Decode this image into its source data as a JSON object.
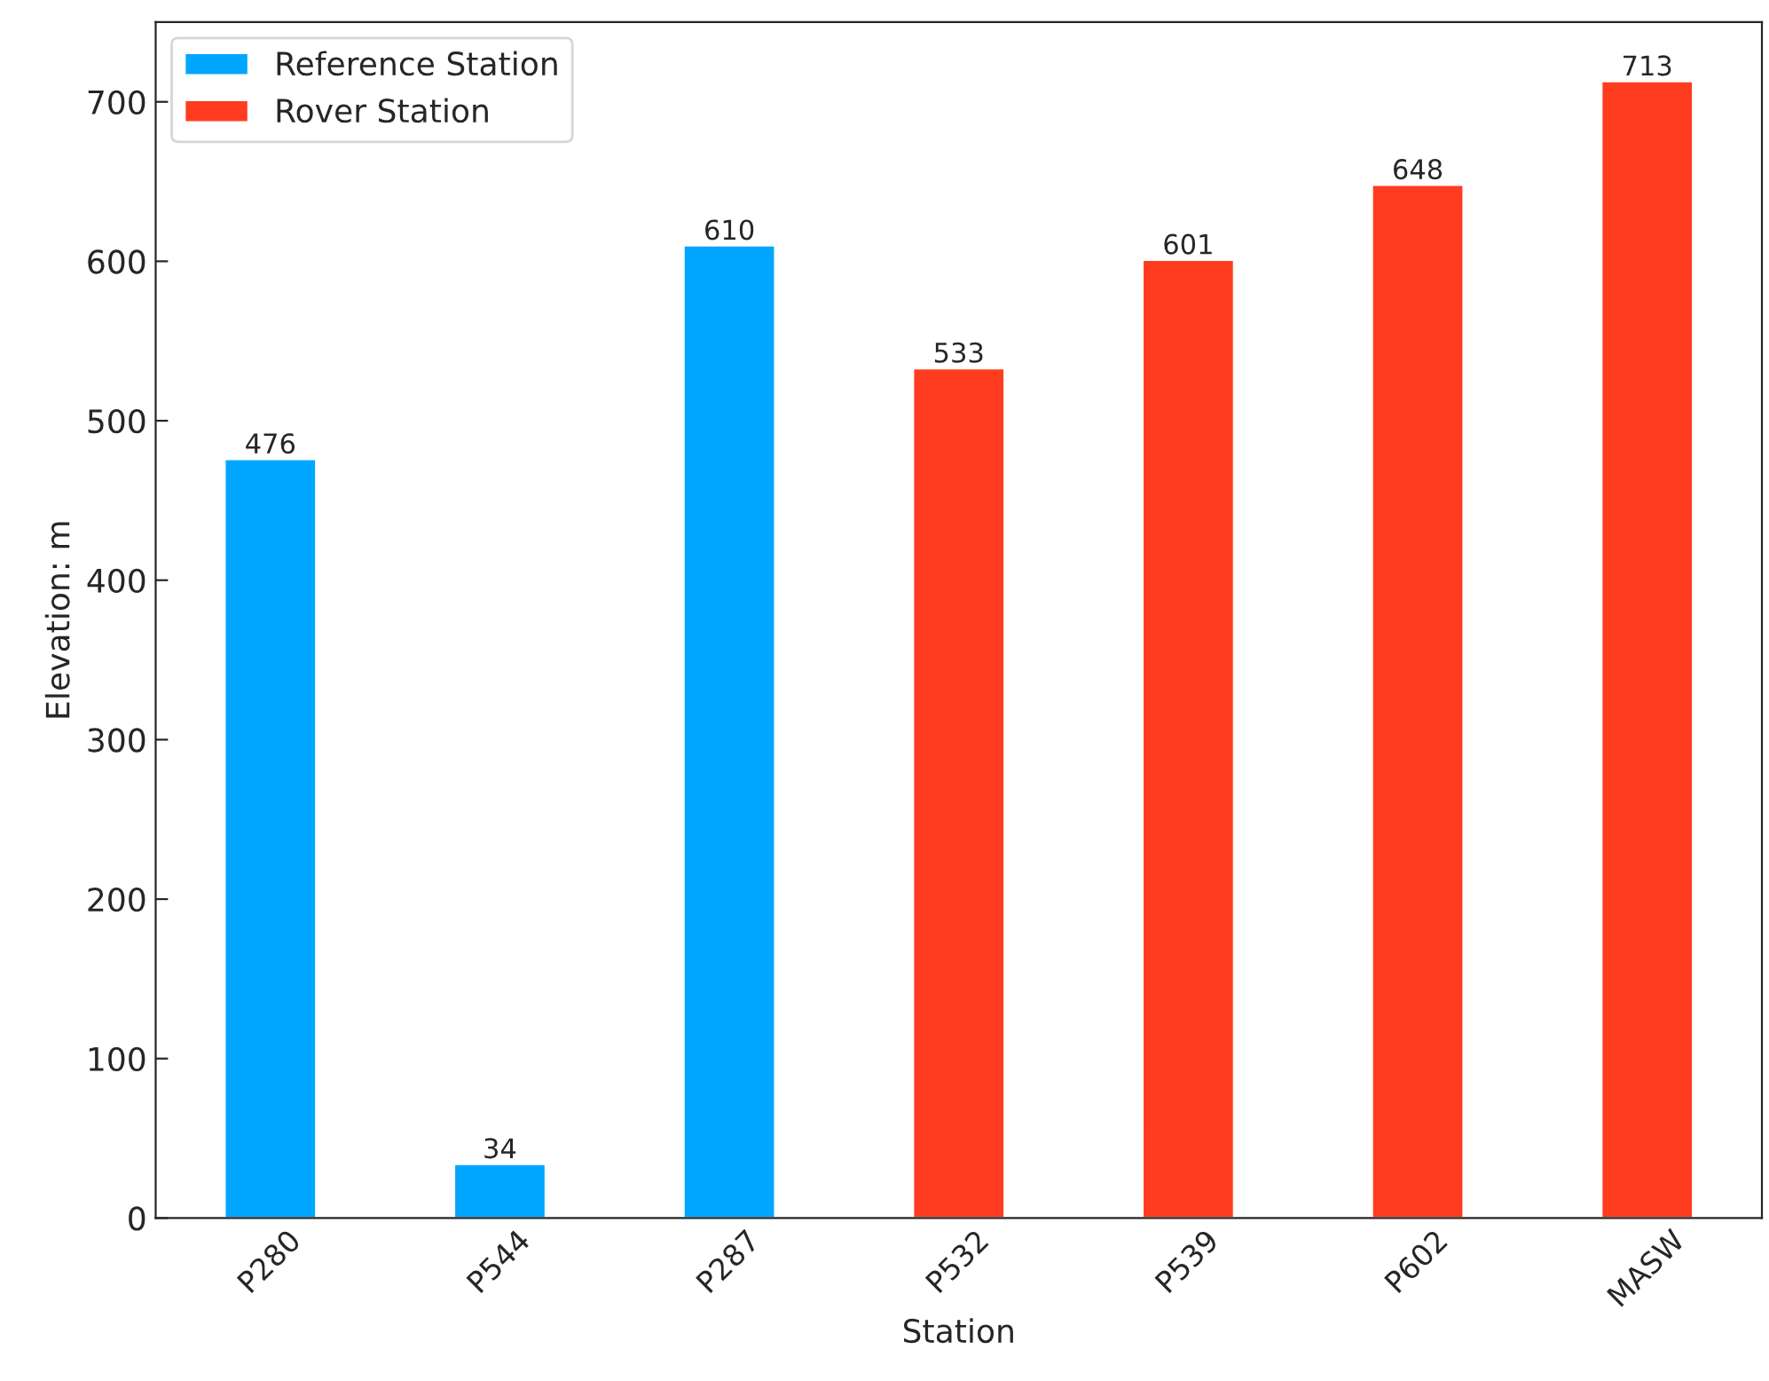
{
  "chart_data": {
    "type": "bar",
    "xlabel": "Station",
    "ylabel": "Elevation: m",
    "categories": [
      "P280",
      "P544",
      "P287",
      "P532",
      "P539",
      "P602",
      "MASW"
    ],
    "series": [
      {
        "name": "Reference Station",
        "color": "#00a6ff",
        "values": [
          476,
          34,
          610,
          null,
          null,
          null,
          null
        ]
      },
      {
        "name": "Rover Station",
        "color": "#ff3c1f",
        "values": [
          null,
          null,
          null,
          533,
          601,
          648,
          713
        ]
      }
    ],
    "ylim": [
      0,
      750
    ],
    "yticks": [
      0,
      100,
      200,
      300,
      400,
      500,
      600,
      700
    ],
    "data_labels": true,
    "legend": "top left",
    "grid": false
  }
}
